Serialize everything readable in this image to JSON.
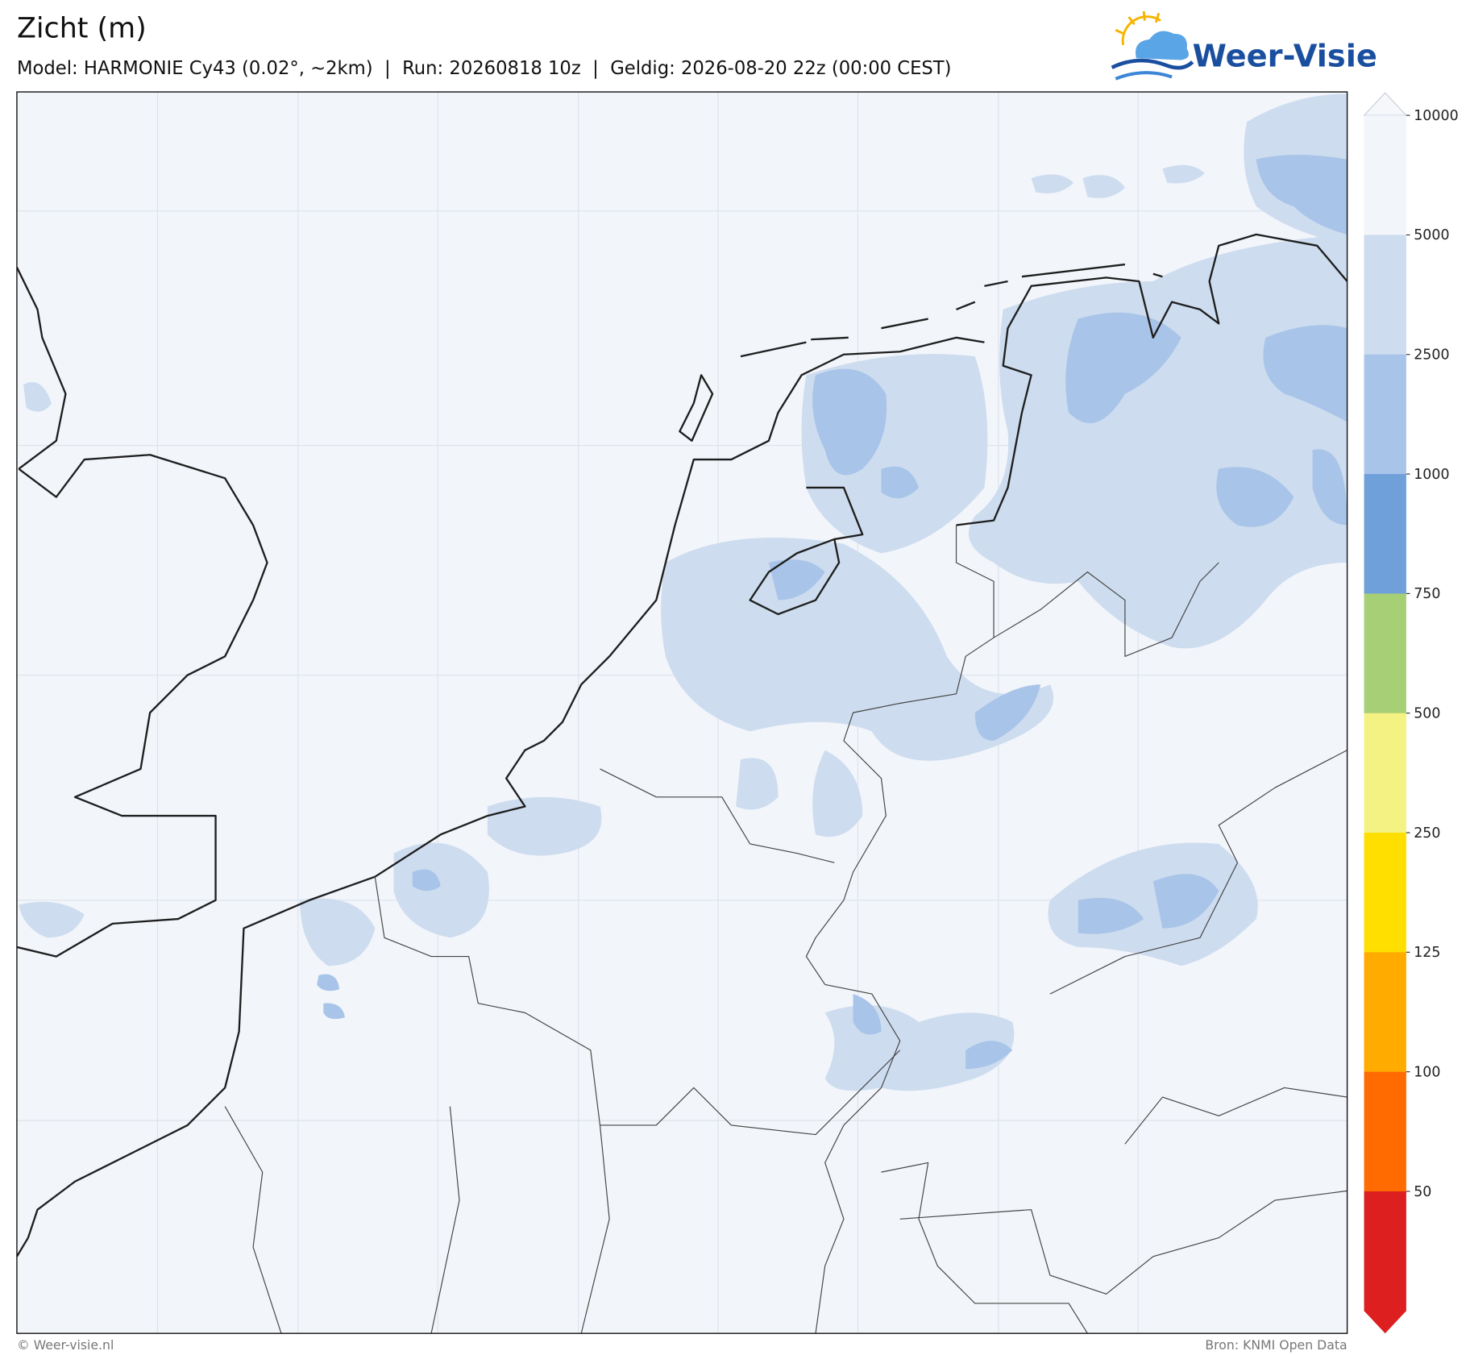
{
  "header": {
    "title": "Zicht (m)",
    "subtitle": "Model: HARMONIE Cy43 (0.02°, ~2km)  |  Run: 20260818 10z  |  Geldig: 2026-08-20 22z (00:00 CEST)",
    "logo": "Weer-Visie"
  },
  "colorbar": {
    "ticks": [
      10000,
      5000,
      2500,
      1000,
      750,
      500,
      250,
      125,
      100,
      50
    ],
    "colors": [
      "#f2f5fa",
      "#cddcef",
      "#a8c4e8",
      "#6fa0da",
      "#a7cf76",
      "#f4f283",
      "#ffdf00",
      "#ffab00",
      "#ff6b00",
      "#dd1f1f"
    ],
    "over_color": "#f5f7fb",
    "under_color": "#dd1f1f"
  },
  "footer": {
    "left": "© Weer-visie.nl",
    "right": "Bron: KNMI Open Data"
  }
}
